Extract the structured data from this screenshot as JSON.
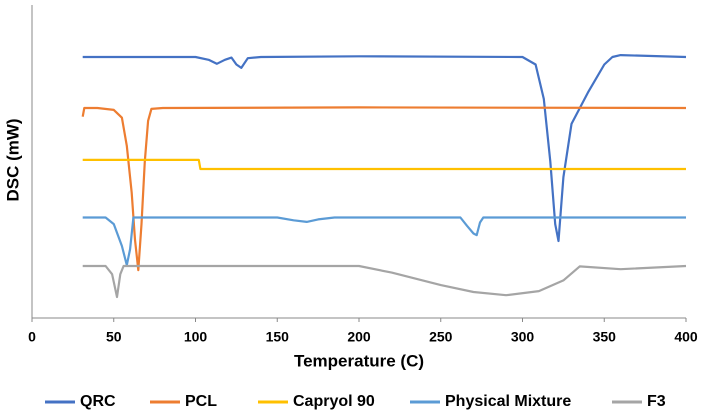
{
  "chart_data": {
    "type": "line",
    "x_label": "Temperature (C)",
    "y_label": "DSC (mW)",
    "xlim": [
      0,
      400
    ],
    "xticks": [
      0,
      50,
      100,
      150,
      200,
      250,
      300,
      350,
      400
    ],
    "ylim": [
      0,
      100
    ],
    "grid": false,
    "legend": "bottom",
    "series": [
      {
        "name": "QRC",
        "color": "#4472c4",
        "x": [
          31,
          100,
          108,
          113,
          118,
          122,
          125,
          128,
          132,
          140,
          200,
          300,
          308,
          313,
          317,
          320,
          322,
          325,
          330,
          340,
          350,
          355,
          360,
          400
        ],
        "values": [
          83.4,
          83.4,
          82.5,
          81.2,
          82.5,
          83.2,
          81,
          79.9,
          83,
          83.4,
          83.6,
          83.4,
          81,
          70,
          50,
          30,
          24.6,
          45,
          62,
          72,
          81,
          83.4,
          84,
          83.4
        ]
      },
      {
        "name": "PCL",
        "color": "#ed7d31",
        "x": [
          31,
          32,
          40,
          50,
          55,
          58,
          61,
          63,
          65,
          67,
          69,
          71,
          73,
          80,
          200,
          400
        ],
        "values": [
          64.3,
          67.1,
          67.1,
          66.5,
          64,
          55,
          40,
          25,
          15.3,
          30,
          50,
          63,
          66.8,
          67.1,
          67.3,
          67.1
        ]
      },
      {
        "name": "Capryol 90",
        "color": "#ffc000",
        "x": [
          31,
          102,
          103,
          400
        ],
        "values": [
          50.5,
          50.5,
          47.6,
          47.6
        ]
      },
      {
        "name": "Physical Mixture",
        "color": "#5b9bd5",
        "x": [
          31,
          45,
          50,
          55,
          58,
          60,
          62,
          150,
          160,
          168,
          175,
          185,
          262,
          266,
          270,
          272,
          274,
          276,
          400
        ],
        "values": [
          32.1,
          32.1,
          30,
          23,
          16.9,
          22,
          32.1,
          32.1,
          31.2,
          30.7,
          31.5,
          32.1,
          32.1,
          29.5,
          27,
          26.5,
          30.5,
          32.1,
          32.1
        ]
      },
      {
        "name": "F3",
        "color": "#a5a5a5",
        "x": [
          31,
          45,
          49,
          52,
          54,
          56,
          60,
          100,
          200,
          220,
          250,
          270,
          290,
          310,
          325,
          335,
          360,
          400
        ],
        "values": [
          16.6,
          16.6,
          14,
          6.7,
          14,
          16.6,
          16.6,
          16.6,
          16.6,
          14.5,
          10.5,
          8.3,
          7.3,
          8.6,
          12,
          16.5,
          15.6,
          16.6
        ]
      }
    ]
  }
}
